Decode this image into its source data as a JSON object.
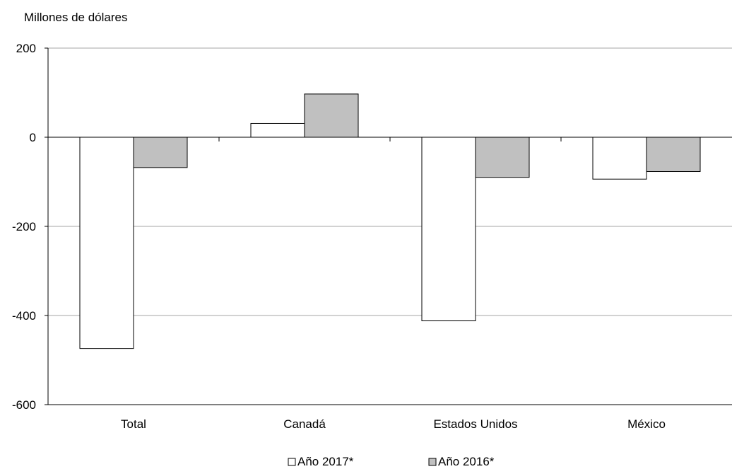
{
  "chart_data": {
    "type": "bar",
    "ylabel": "Millones de dólares",
    "categories": [
      "Total",
      "Canadá",
      "Estados Unidos",
      "México"
    ],
    "series": [
      {
        "name": "Año 2017*",
        "values": [
          -474,
          31,
          -412,
          -94
        ],
        "color": "#ffffff"
      },
      {
        "name": "Año 2016*",
        "values": [
          -68,
          97,
          -90,
          -77
        ],
        "color": "#c0c0c0"
      }
    ],
    "ylim": [
      -600,
      200
    ],
    "yticks": [
      -600,
      -400,
      -200,
      0,
      200
    ],
    "ytick_labels": [
      "-600",
      "-400",
      "-200",
      "0",
      "200"
    ],
    "grid": true,
    "legend_position": "bottom"
  }
}
